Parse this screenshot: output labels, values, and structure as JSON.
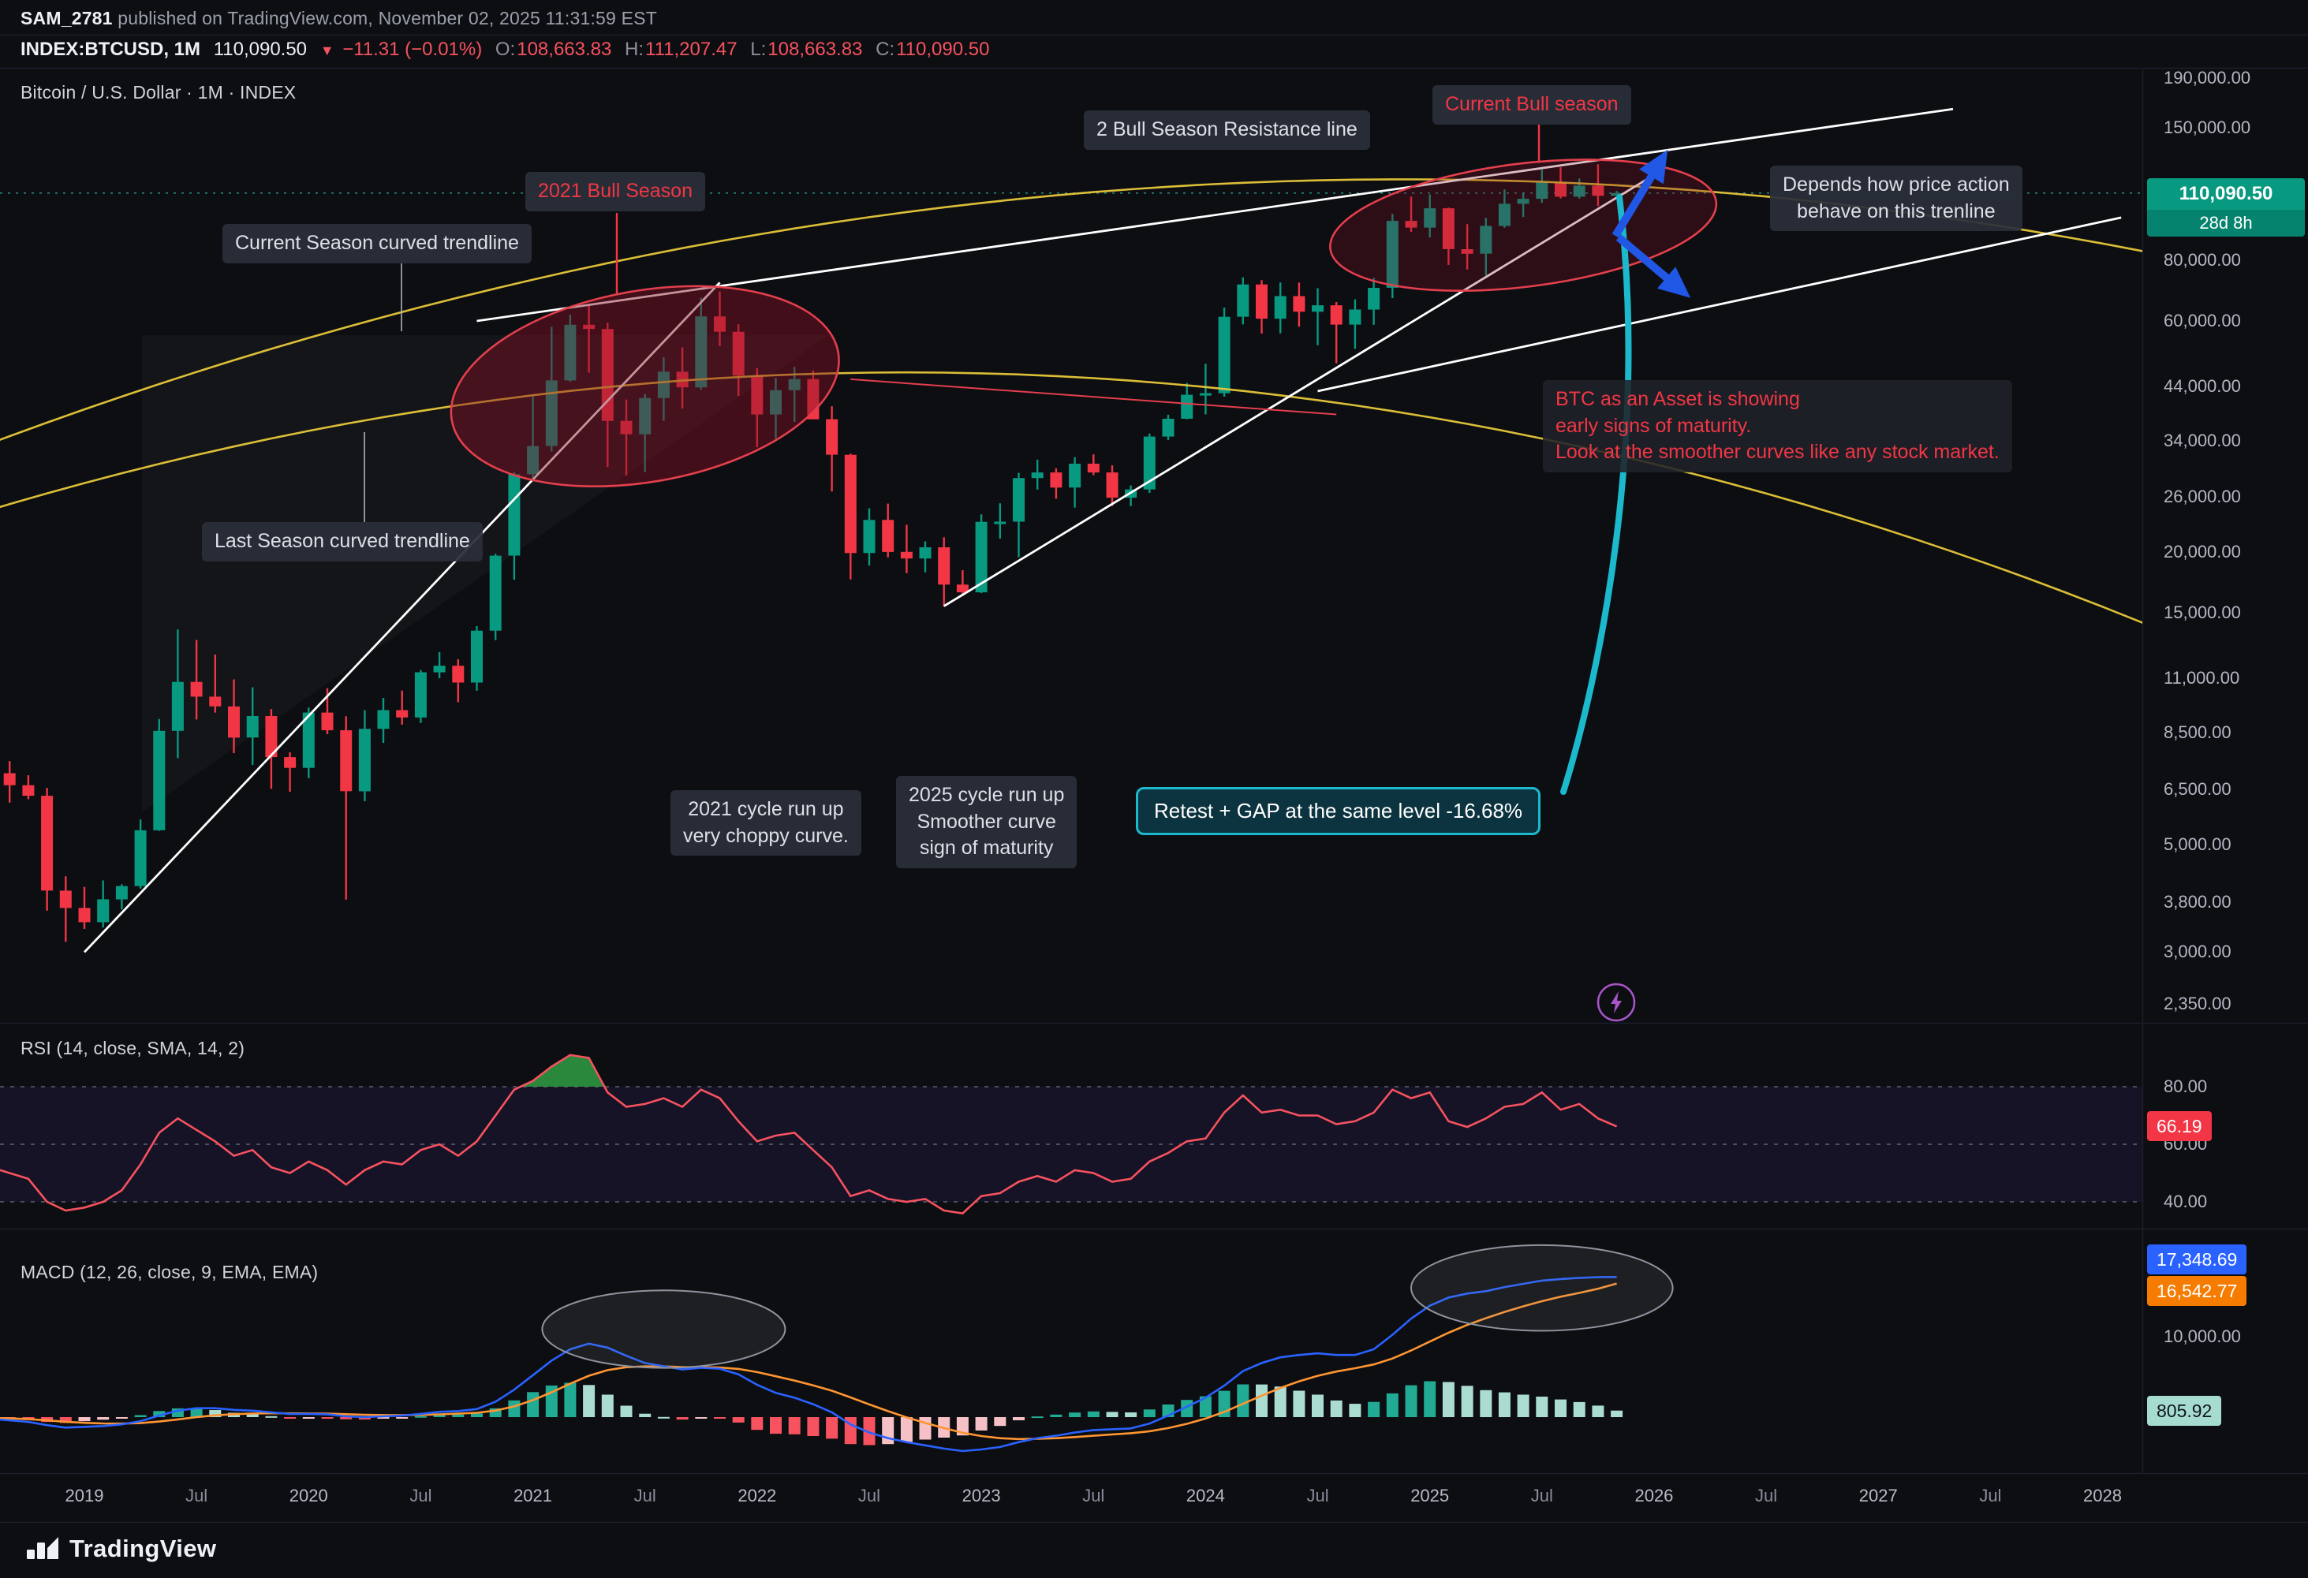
{
  "header": {
    "author": "SAM_2781",
    "published": " published on TradingView.com, November 02, 2025 11:31:59 EST",
    "symbol": "INDEX:BTCUSD, 1M",
    "last_price": "110,090.50",
    "change_arrow": "▼",
    "change": "−11.31 (−0.01%)",
    "o_label": "O:",
    "o_value": "108,663.83",
    "h_label": "H:",
    "h_value": "111,207.47",
    "l_label": "L:",
    "l_value": "108,663.83",
    "c_label": "C:",
    "c_value": "110,090.50"
  },
  "panes": {
    "main_title": "Bitcoin / U.S. Dollar · 1M · INDEX",
    "rsi_title": "RSI (14, close, SMA, 14, 2)",
    "macd_title": "MACD (12, 26, close, 9, EMA, EMA)"
  },
  "annotations": {
    "bull_2021": "2021 Bull Season",
    "current_curve": "Current Season curved trendline",
    "resistance": "2 Bull Season Resistance line",
    "current_bull": "Current Bull season",
    "depends": "Depends how price action\nbehave on this trenline",
    "last_curve": "Last Season curved trendline",
    "run_2021": "2021 cycle run up\nvery choppy curve.",
    "run_2025": "2025 cycle run up\nSmoother curve\nsign of maturity",
    "retest": "Retest + GAP at the same level -16.68%",
    "maturity_note": "BTC as an Asset is  showing\nearly signs of maturity.\nLook at the smoother curves like any stock market."
  },
  "badges": {
    "price": "110,090.50",
    "countdown": "28d 8h",
    "rsi": "66.19",
    "macd_line": "17,348.69",
    "macd_signal": "16,542.77",
    "macd_hist": "805.92"
  },
  "price_axis": {
    "ticks": [
      "190,000.00",
      "150,000.00",
      "80,000.00",
      "60,000.00",
      "44,000.00",
      "34,000.00",
      "26,000.00",
      "20,000.00",
      "15,000.00",
      "11,000.00",
      "8,500.00",
      "6,500.00",
      "5,000.00",
      "3,800.00",
      "3,000.00",
      "2,350.00"
    ]
  },
  "rsi_axis": {
    "ticks": [
      "80.00",
      "60.00",
      "40.00"
    ]
  },
  "macd_axis": {
    "ticks": [
      "10,000.00"
    ]
  },
  "time_axis": {
    "labels": [
      "2019",
      "Jul",
      "2020",
      "Jul",
      "2021",
      "Jul",
      "2022",
      "Jul",
      "2023",
      "Jul",
      "2024",
      "Jul",
      "2025",
      "Jul",
      "2026",
      "Jul",
      "2027",
      "Jul",
      "2028"
    ],
    "start": "2019-01",
    "step_months": 6
  },
  "footer": {
    "brand": "TradingView"
  },
  "colors": {
    "background": "#0d0e12",
    "up": "#089981",
    "down": "#f23645",
    "trendline_white": "#ffffff",
    "curve_yellow": "#e7c83a",
    "cyan": "#1cb9cd",
    "arrow_blue": "#2157e5",
    "ellipse_red": "#e33f4d",
    "rsi_line": "#f7525f",
    "macd_line": "#2962ff",
    "macd_signal": "#ff9532",
    "price_badge": "#089981",
    "idea_purple": "#a855c8"
  },
  "chart_data": [
    {
      "type": "candlestick",
      "symbol": "INDEX:BTCUSD",
      "timeframe": "1M",
      "yscale": "log",
      "ylim": [
        2152,
        198000
      ],
      "start": "2018-08",
      "current_price": 110090.5,
      "ohlc": [
        [
          7750,
          7750,
          5859,
          7014
        ],
        [
          7014,
          7429,
          6100,
          6625
        ],
        [
          6625,
          6945,
          6200,
          6300
        ],
        [
          6300,
          6542,
          3652,
          4017
        ],
        [
          4017,
          4300,
          3150,
          3700
        ],
        [
          3700,
          4089,
          3349,
          3457
        ],
        [
          3457,
          4215,
          3373,
          3854
        ],
        [
          3854,
          4140,
          3676,
          4105
        ],
        [
          4105,
          5627,
          4056,
          5350
        ],
        [
          5350,
          9074,
          5334,
          8574
        ],
        [
          8574,
          13868,
          7533,
          10817
        ],
        [
          10817,
          13200,
          9049,
          10085
        ],
        [
          10085,
          12316,
          9352,
          9630
        ],
        [
          9630,
          10949,
          7714,
          8308
        ],
        [
          8308,
          10540,
          7293,
          9199
        ],
        [
          9199,
          9505,
          6515,
          7569
        ],
        [
          7569,
          7743,
          6425,
          7193
        ],
        [
          7193,
          9578,
          6850,
          9350
        ],
        [
          9350,
          10500,
          8444,
          8599
        ],
        [
          8599,
          9188,
          3850,
          6438
        ],
        [
          6438,
          9460,
          6140,
          8658
        ],
        [
          8658,
          10027,
          8101,
          9461
        ],
        [
          9461,
          10380,
          8830,
          9137
        ],
        [
          9137,
          11444,
          8900,
          11323
        ],
        [
          11323,
          12468,
          11010,
          11680
        ],
        [
          11680,
          12050,
          9825,
          10784
        ],
        [
          10784,
          14100,
          10374,
          13797
        ],
        [
          13797,
          19863,
          13195,
          19698
        ],
        [
          19698,
          29300,
          17572,
          28990
        ],
        [
          28990,
          41950,
          28130,
          33141
        ],
        [
          33141,
          58352,
          32296,
          45240
        ],
        [
          45240,
          61844,
          44950,
          58919
        ],
        [
          58919,
          64863,
          46930,
          57750
        ],
        [
          57750,
          59500,
          30000,
          37332
        ],
        [
          37332,
          41330,
          28805,
          35040
        ],
        [
          35040,
          42448,
          29278,
          41626
        ],
        [
          41626,
          50500,
          37332,
          47166
        ],
        [
          47166,
          52920,
          39573,
          43790
        ],
        [
          43790,
          66999,
          43283,
          61318
        ],
        [
          61318,
          69000,
          53256,
          57005
        ],
        [
          57005,
          59041,
          42000,
          46306
        ],
        [
          46306,
          47990,
          32950,
          38483
        ],
        [
          38483,
          45821,
          34322,
          43193
        ],
        [
          43193,
          48234,
          37155,
          45538
        ],
        [
          45538,
          47444,
          37630,
          37630
        ],
        [
          37630,
          40023,
          26700,
          31792
        ],
        [
          31792,
          31957,
          17593,
          19942
        ],
        [
          19942,
          24668,
          18781,
          23336
        ],
        [
          23336,
          25211,
          19526,
          20049
        ],
        [
          20049,
          22799,
          18125,
          19432
        ],
        [
          19432,
          21085,
          18190,
          20495
        ],
        [
          20495,
          21479,
          15476,
          17168
        ],
        [
          17168,
          18387,
          16256,
          16547
        ],
        [
          16547,
          23960,
          16490,
          23125
        ],
        [
          23125,
          25250,
          21351,
          23147
        ],
        [
          23147,
          29184,
          19549,
          28465
        ],
        [
          28465,
          31059,
          26942,
          29233
        ],
        [
          29233,
          29820,
          25810,
          27210
        ],
        [
          27210,
          31430,
          24750,
          30471
        ],
        [
          30471,
          31862,
          28855,
          29230
        ],
        [
          29230,
          30242,
          24930,
          25931
        ],
        [
          25931,
          27483,
          24900,
          26967
        ],
        [
          26967,
          35150,
          26533,
          34657
        ],
        [
          34657,
          38450,
          34100,
          37718
        ],
        [
          37718,
          44700,
          37615,
          42265
        ],
        [
          42265,
          48969,
          38501,
          42580
        ],
        [
          42580,
          63933,
          41884,
          61198
        ],
        [
          61198,
          73777,
          59005,
          71333
        ],
        [
          71333,
          72797,
          56500,
          60636
        ],
        [
          60636,
          71979,
          56552,
          67491
        ],
        [
          67491,
          71997,
          58402,
          62678
        ],
        [
          62678,
          70079,
          53485,
          64628
        ],
        [
          64628,
          65659,
          49050,
          58969
        ],
        [
          58969,
          66480,
          52546,
          63329
        ],
        [
          63329,
          73620,
          58895,
          70215
        ],
        [
          70215,
          99655,
          66835,
          96449
        ],
        [
          96449,
          108268,
          91530,
          93429
        ],
        [
          93429,
          109358,
          89164,
          102405
        ],
        [
          102405,
          102781,
          78258,
          84349
        ],
        [
          84349,
          95000,
          76606,
          82548
        ],
        [
          82548,
          97895,
          74434,
          94207
        ],
        [
          94207,
          111980,
          93368,
          104638
        ],
        [
          104638,
          110530,
          98240,
          107135
        ],
        [
          107135,
          123218,
          105111,
          115758
        ],
        [
          115758,
          124457,
          107270,
          108236
        ],
        [
          108236,
          118000,
          107270,
          114056
        ],
        [
          114056,
          126198,
          103530,
          108663
        ],
        [
          108663.83,
          111207.47,
          108663.83,
          110090.5
        ]
      ],
      "trendlines": [
        {
          "name": "2021-cycle-run-up-line",
          "from": [
            "2019-01",
            3000
          ],
          "to": [
            "2021-11",
            72000
          ],
          "color": "#ffffff",
          "width": 2.8
        },
        {
          "name": "2025-cycle-run-up-line",
          "from": [
            "2022-11",
            15500
          ],
          "to": [
            "2026-01",
            120000
          ],
          "color": "#ffffff",
          "width": 2.8
        },
        {
          "name": "two-bull-season-resistance-line",
          "from": [
            "2020-10",
            60000
          ],
          "to": [
            "2027-05",
            164000
          ],
          "color": "#ffffff",
          "width": 2.8
        },
        {
          "name": "price-action-trendline",
          "from": [
            "2024-07",
            43000
          ],
          "to": [
            "2028-02",
            98000
          ],
          "color": "#ffffff",
          "width": 2.8
        },
        {
          "name": "level-connector-line",
          "from": [
            "2022-06",
            45500
          ],
          "to": [
            "2024-08",
            38500
          ],
          "color": "#e33f4d",
          "width": 2
        }
      ],
      "curves": [
        {
          "name": "current-season-curved-trendline",
          "color": "#e7c83a",
          "anchors": [
            [
              "2018-08",
              33600
            ],
            [
              "2024-12",
              117500
            ],
            [
              "2028-06",
              79400
            ]
          ]
        },
        {
          "name": "last-season-curved-trendline",
          "color": "#e7c83a",
          "anchors": [
            [
              "2018-08",
              24500
            ],
            [
              "2022-09",
              47000
            ],
            [
              "2028-06",
              12900
            ]
          ]
        }
      ],
      "ellipses": [
        {
          "name": "2021-bull-season-ellipse",
          "center": [
            "2021-07",
            44000
          ],
          "rx_months": 10.5,
          "ry_logdec": 0.197,
          "rotate": -10,
          "fill_opacity": 0.45
        },
        {
          "name": "current-bull-season-ellipse",
          "center": [
            "2025-06",
            94500
          ],
          "rx_months": 10.4,
          "ry_logdec": 0.127,
          "rotate": -7,
          "fill_opacity": 0.28
        }
      ]
    },
    {
      "type": "line",
      "name": "RSI (14, close, SMA, 14, 2)",
      "start": "2018-08",
      "color": "#f7525f",
      "levels": [
        80,
        60,
        40
      ],
      "overbought_level": 80,
      "current": 66.19,
      "values": [
        52,
        50,
        48,
        40,
        37,
        38,
        40,
        44,
        53,
        64,
        69,
        65,
        61,
        56,
        58,
        52,
        50,
        54,
        51,
        46,
        51,
        54,
        53,
        58,
        60,
        56,
        61,
        70,
        79,
        82,
        87,
        91,
        90,
        78,
        73,
        74,
        76,
        73,
        79,
        76,
        68,
        61,
        63,
        64,
        58,
        52,
        42,
        44,
        41,
        40,
        41,
        37,
        36,
        42,
        43,
        47,
        49,
        47,
        51,
        50,
        47,
        48,
        54,
        57,
        61,
        62,
        71,
        77,
        71,
        72,
        70,
        70,
        67,
        68,
        71,
        79,
        76,
        78,
        68,
        66,
        69,
        73,
        74,
        78,
        72,
        74,
        69,
        66.19
      ]
    },
    {
      "type": "macd",
      "name": "MACD (12, 26, close, 9, EMA, EMA)",
      "start": "2018-08",
      "current": {
        "macd": 17348.69,
        "signal": 16542.77,
        "histogram": 805.92
      },
      "macd": [
        -200,
        -400,
        -600,
        -1000,
        -1300,
        -1200,
        -1100,
        -900,
        -500,
        200,
        800,
        1100,
        1100,
        900,
        800,
        600,
        400,
        400,
        350,
        100,
        0,
        100,
        200,
        400,
        650,
        750,
        1000,
        1900,
        3400,
        5200,
        7000,
        8400,
        9100,
        8600,
        7600,
        6700,
        6300,
        5900,
        6100,
        6000,
        5300,
        4000,
        3000,
        2400,
        1600,
        600,
        -900,
        -1900,
        -2600,
        -3100,
        -3500,
        -3900,
        -4200,
        -4000,
        -3700,
        -3100,
        -2600,
        -2300,
        -1900,
        -1600,
        -1500,
        -1400,
        -800,
        200,
        1300,
        2400,
        3900,
        5700,
        6700,
        7400,
        7700,
        7900,
        7700,
        7700,
        8400,
        10200,
        12200,
        13800,
        14800,
        15300,
        15600,
        16100,
        16500,
        16900,
        17100,
        17250,
        17330,
        17348.69
      ],
      "signal": [
        -100,
        -160,
        -250,
        -400,
        -580,
        -700,
        -780,
        -800,
        -740,
        -550,
        -280,
        0,
        220,
        360,
        450,
        480,
        465,
        450,
        430,
        365,
        290,
        250,
        240,
        270,
        345,
        425,
        540,
        810,
        1330,
        2100,
        3080,
        4140,
        5130,
        5820,
        6180,
        6280,
        6280,
        6200,
        6180,
        6140,
        5970,
        5580,
        5060,
        4530,
        3940,
        3270,
        2440,
        1570,
        740,
        -30,
        -720,
        -1360,
        -1930,
        -2340,
        -2610,
        -2710,
        -2690,
        -2610,
        -2470,
        -2300,
        -2140,
        -1990,
        -1750,
        -1360,
        -830,
        -180,
        640,
        1650,
        2660,
        3610,
        4430,
        5120,
        5640,
        6050,
        6520,
        7260,
        8250,
        9360,
        10450,
        11420,
        12260,
        13030,
        13720,
        14360,
        14910,
        15380,
        15900,
        16542.77
      ],
      "ellipses": [
        {
          "name": "macd-2021-top-ellipse",
          "center": [
            "2021-08",
            10900
          ],
          "rx_months": 6.5,
          "ry_value": 4800
        },
        {
          "name": "macd-2025-top-ellipse",
          "center": [
            "2025-07",
            16000
          ],
          "rx_months": 7,
          "ry_value": 5300
        }
      ]
    }
  ]
}
